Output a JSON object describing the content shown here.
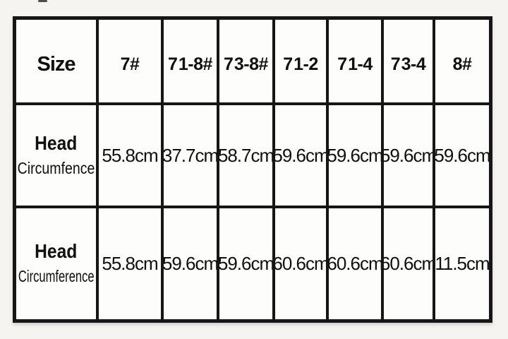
{
  "chart_data": {
    "type": "table",
    "columns": [
      "Size",
      "7#",
      "7 1-8#",
      "7 3-8#",
      "7 1-2",
      "7 1-4",
      "7 3-4",
      "8#"
    ],
    "rows": [
      [
        "Head Circumfence",
        "55.8cm",
        "37.7cm",
        "58.7cm",
        "59.6cm",
        "59.6cm",
        "59.6cm",
        "59.6cm"
      ],
      [
        "Head Circumference",
        "55.8cm",
        "59.6cm",
        "59.6cm",
        "60.6cm",
        "60.6cm",
        "60.6cm",
        "11.5cm"
      ]
    ]
  },
  "table": {
    "header": {
      "size_label": "Size",
      "columns": [
        "7#",
        "7 1-8#",
        "7 3-8#",
        "7 1-2",
        "7 1-4",
        "7 3-4",
        "8#"
      ]
    },
    "rows": [
      {
        "label_line1": "Head",
        "label_line2": "Circumfence",
        "values": [
          "55.8cm",
          "37.7cm",
          "58.7cm",
          "59.6cm",
          "59.6cm",
          "59.6cm",
          "59.6cm"
        ]
      },
      {
        "label_line1": "Head",
        "label_line2": "Circumference",
        "values": [
          "55.8cm",
          "59.6cm",
          "59.6cm",
          "60.6cm",
          "60.6cm",
          "60.6cm",
          "11.5cm"
        ]
      }
    ]
  },
  "colors": {
    "page_bg": "#f5f4f1",
    "grid_line": "#161616",
    "cell_bg": "#fdfdfc",
    "text": "#101010"
  }
}
